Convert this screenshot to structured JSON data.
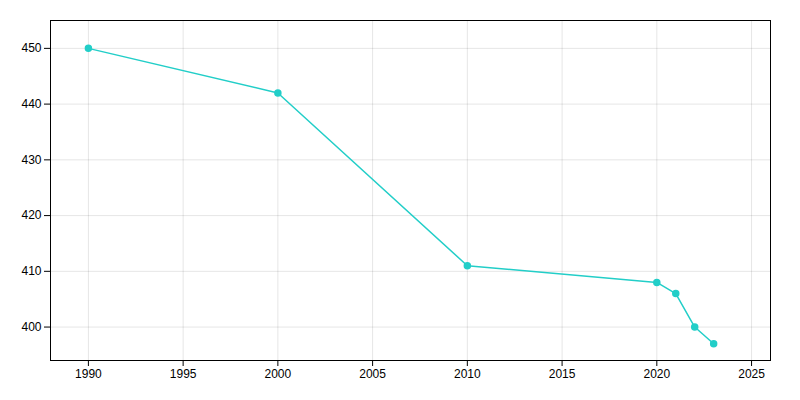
{
  "chart_data": {
    "type": "line",
    "x": [
      1990,
      2000,
      2010,
      2020,
      2021,
      2022,
      2023
    ],
    "values": [
      450,
      442,
      411,
      408,
      406,
      400,
      397
    ],
    "color": "#22CEC8",
    "marker": "circle",
    "xlim": [
      1988,
      2026
    ],
    "xticks": [
      1990,
      1995,
      2000,
      2005,
      2010,
      2015,
      2020,
      2025
    ],
    "ylim": [
      394,
      455
    ],
    "yticks": [
      400,
      410,
      420,
      430,
      440,
      450
    ],
    "grid": true
  }
}
